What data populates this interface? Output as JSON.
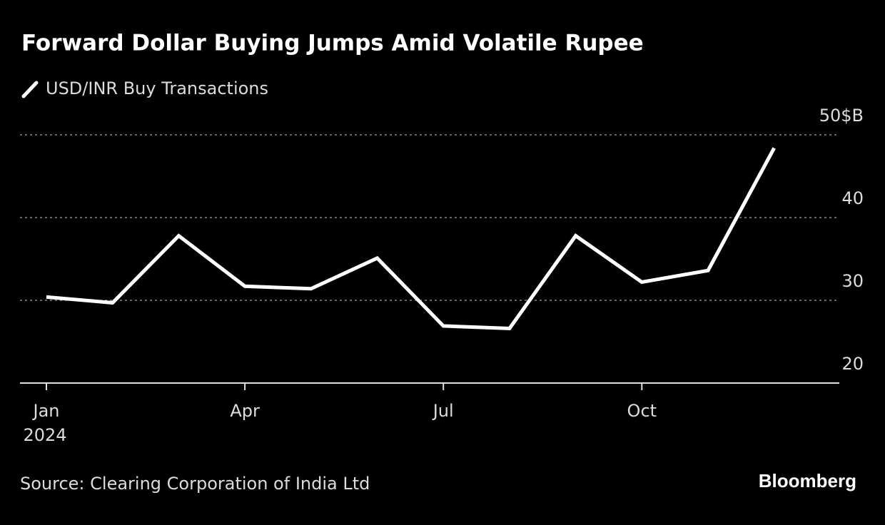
{
  "chart_data": {
    "type": "line",
    "title": "Forward Dollar Buying Jumps Amid Volatile Rupee",
    "categories": [
      "Jan",
      null,
      null,
      "Apr",
      null,
      null,
      "Jul",
      null,
      null,
      "Oct",
      null,
      null
    ],
    "x_year_label": "2024",
    "series": [
      {
        "name": "USD/INR Buy Transactions",
        "color": "#ffffff",
        "values": [
          30.4,
          29.7,
          37.8,
          31.7,
          31.4,
          35.1,
          26.9,
          26.6,
          37.8,
          32.2,
          33.6,
          48.4
        ]
      }
    ],
    "ylim": [
      20,
      50
    ],
    "yticks": [
      20,
      30,
      40,
      {
        "value": 50,
        "label": "50$B"
      }
    ],
    "grid": true,
    "source": "Source: Clearing Corporation of India Ltd",
    "brand": "Bloomberg"
  }
}
